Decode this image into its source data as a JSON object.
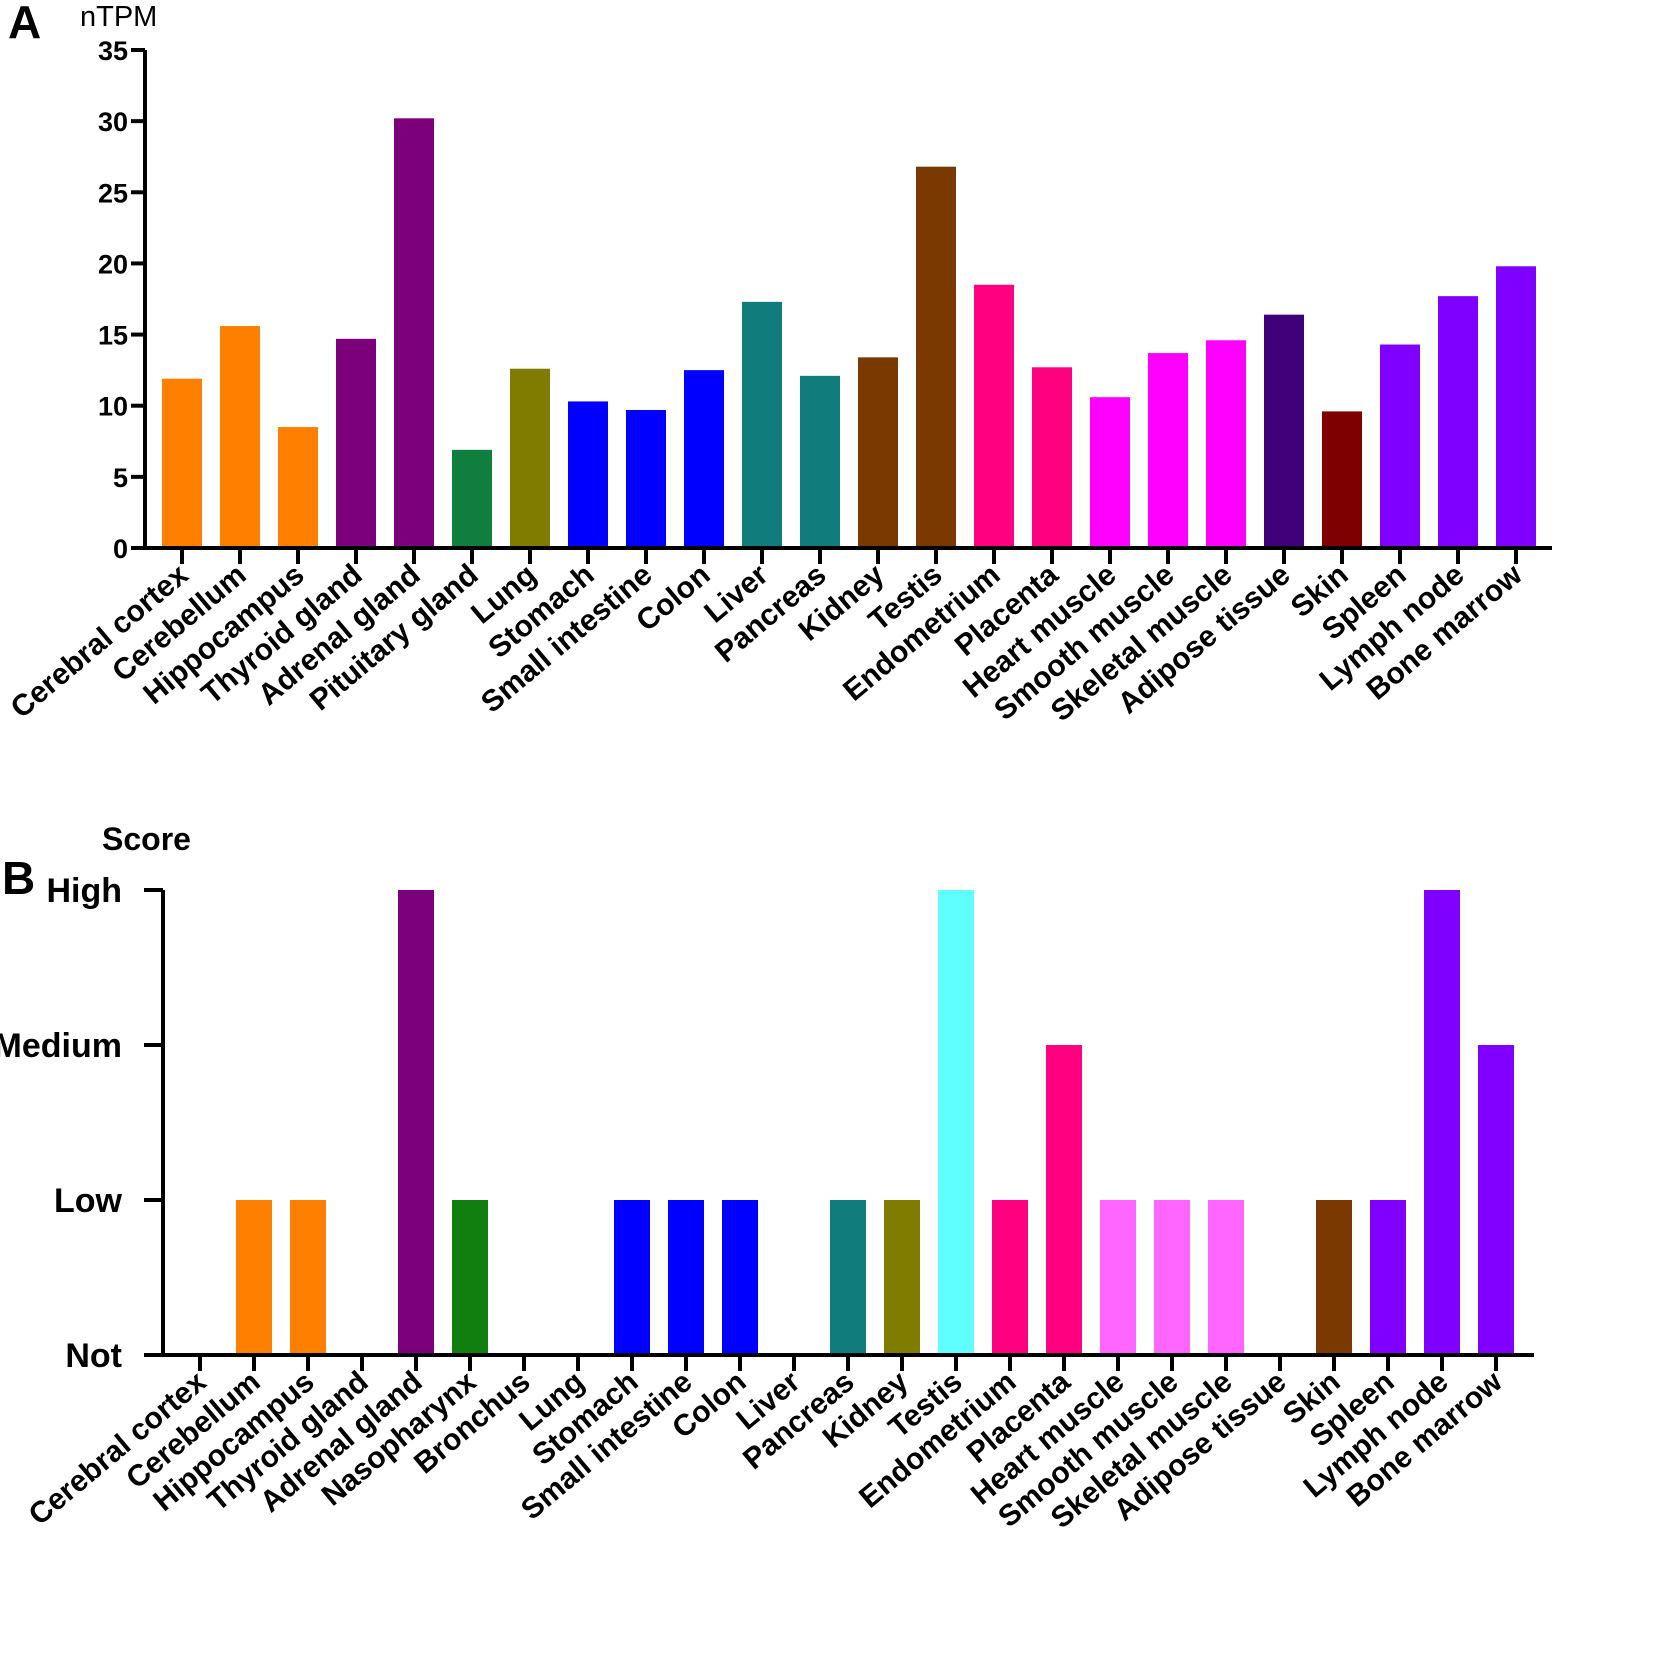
{
  "chart_data": [
    {
      "panel": "A",
      "type": "bar",
      "ylabel": "nTPM",
      "ylim": [
        0,
        35
      ],
      "yticks": [
        0,
        5,
        10,
        15,
        20,
        25,
        30,
        35
      ],
      "categories": [
        "Cerebral cortex",
        "Cerebellum",
        "Hippocampus",
        "Thyroid gland",
        "Adrenal gland",
        "Pituitary gland",
        "Lung",
        "Stomach",
        "Small intestine",
        "Colon",
        "Liver",
        "Pancreas",
        "Kidney",
        "Testis",
        "Endometrium",
        "Placenta",
        "Heart muscle",
        "Smooth muscle",
        "Skeletal muscle",
        "Adipose tissue",
        "Skin",
        "Spleen",
        "Lymph node",
        "Bone marrow"
      ],
      "values": [
        11.9,
        15.6,
        8.5,
        14.7,
        30.2,
        6.9,
        12.6,
        10.3,
        9.7,
        12.5,
        17.3,
        12.1,
        13.4,
        26.8,
        18.5,
        12.7,
        10.6,
        13.7,
        14.6,
        16.4,
        9.6,
        14.3,
        17.7,
        19.8
      ],
      "colors": [
        "#FF8000",
        "#FF8000",
        "#FF8000",
        "#7B0079",
        "#7B0079",
        "#107F3E",
        "#7F7C00",
        "#0000FF",
        "#0000FF",
        "#0000FF",
        "#107C7C",
        "#107C7C",
        "#7A3900",
        "#7A3900",
        "#FF0080",
        "#FF0080",
        "#FF00FF",
        "#FF00FF",
        "#FF00FF",
        "#3F007A",
        "#7F0000",
        "#8000FF",
        "#8000FF",
        "#8000FF"
      ]
    },
    {
      "panel": "B",
      "type": "bar",
      "ylabel": "Score",
      "ylim": [
        0,
        3
      ],
      "ytick_labels": [
        "Not",
        "Low",
        "Medium",
        "High"
      ],
      "categories": [
        "Cerebral cortex",
        "Cerebellum",
        "Hippocampus",
        "Thyroid gland",
        "Adrenal gland",
        "Nasopharynx",
        "Bronchus",
        "Lung",
        "Stomach",
        "Small intestine",
        "Colon",
        "Liver",
        "Pancreas",
        "Kidney",
        "Testis",
        "Endometrium",
        "Placenta",
        "Heart muscle",
        "Smooth muscle",
        "Skeletal muscle",
        "Adipose tissue",
        "Skin",
        "Spleen",
        "Lymph node",
        "Bone marrow"
      ],
      "values": [
        0,
        1,
        1,
        0,
        3,
        1,
        0,
        0,
        1,
        1,
        1,
        0,
        1,
        1,
        3,
        1,
        2,
        1,
        1,
        1,
        0,
        1,
        1,
        3,
        2
      ],
      "colors": [
        "#FF8000",
        "#FF8000",
        "#FF8000",
        "#7B0079",
        "#7B0079",
        "#107F10",
        "#7F7C00",
        "#7F7C00",
        "#0000FF",
        "#0000FF",
        "#0000FF",
        "#107C7C",
        "#107C7C",
        "#7F7C00",
        "#5FFFFF",
        "#FF0080",
        "#FF0080",
        "#FF66FF",
        "#FF66FF",
        "#FF66FF",
        "#3F007A",
        "#7A3900",
        "#8000FF",
        "#8000FF",
        "#8000FF"
      ]
    }
  ]
}
